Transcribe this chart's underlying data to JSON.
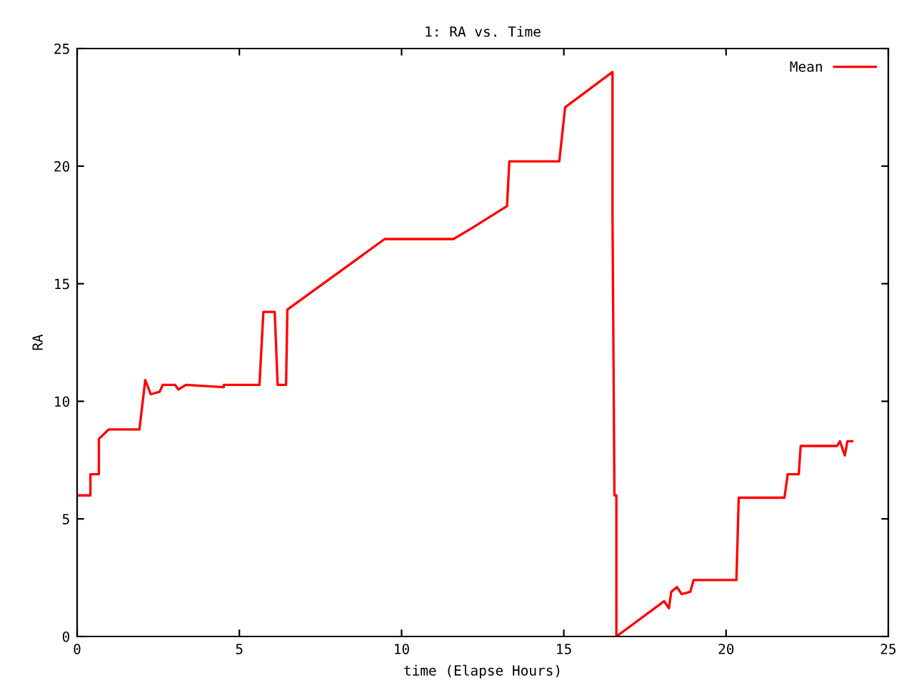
{
  "chart_data": {
    "type": "line",
    "title": "1: RA vs. Time",
    "xlabel": "time (Elapse Hours)",
    "ylabel": "RA",
    "xlim": [
      0,
      25
    ],
    "ylim": [
      0,
      25
    ],
    "xticks": [
      0,
      5,
      10,
      15,
      20,
      25
    ],
    "yticks": [
      0,
      5,
      10,
      15,
      20,
      25
    ],
    "grid": false,
    "legend": "top right",
    "marker": "none",
    "line_style": "solid",
    "series": [
      {
        "name": "Mean",
        "color": "#ff0000",
        "x": [
          0,
          0.41,
          0.41,
          0.67,
          0.67,
          0.97,
          0.97,
          1.92,
          2.1,
          2.27,
          2.54,
          2.64,
          3.02,
          3.12,
          3.35,
          4.52,
          4.52,
          5.62,
          5.74,
          6.09,
          6.18,
          6.44,
          6.48,
          9.48,
          11.6,
          12.15,
          13.25,
          13.32,
          14.86,
          15.04,
          16.5,
          16.5,
          16.56,
          16.62,
          16.62,
          18.09,
          18.24,
          18.31,
          18.49,
          18.63,
          18.9,
          19.0,
          20.32,
          20.39,
          21.8,
          21.9,
          22.24,
          22.3,
          23.42,
          23.51,
          23.66,
          23.74,
          23.89
        ],
        "values": [
          6.0,
          6.0,
          6.9,
          6.9,
          8.4,
          8.8,
          8.8,
          8.8,
          10.9,
          10.3,
          10.4,
          10.7,
          10.7,
          10.5,
          10.7,
          10.6,
          10.7,
          10.7,
          13.8,
          13.8,
          10.7,
          10.7,
          13.9,
          16.9,
          16.9,
          17.35,
          18.3,
          20.2,
          20.2,
          22.5,
          24.0,
          18.0,
          6.0,
          6.0,
          0.0,
          1.5,
          1.2,
          1.9,
          2.1,
          1.8,
          1.9,
          2.4,
          2.4,
          5.9,
          5.9,
          6.9,
          6.9,
          8.1,
          8.1,
          8.3,
          7.7,
          8.3,
          8.3
        ]
      }
    ]
  }
}
